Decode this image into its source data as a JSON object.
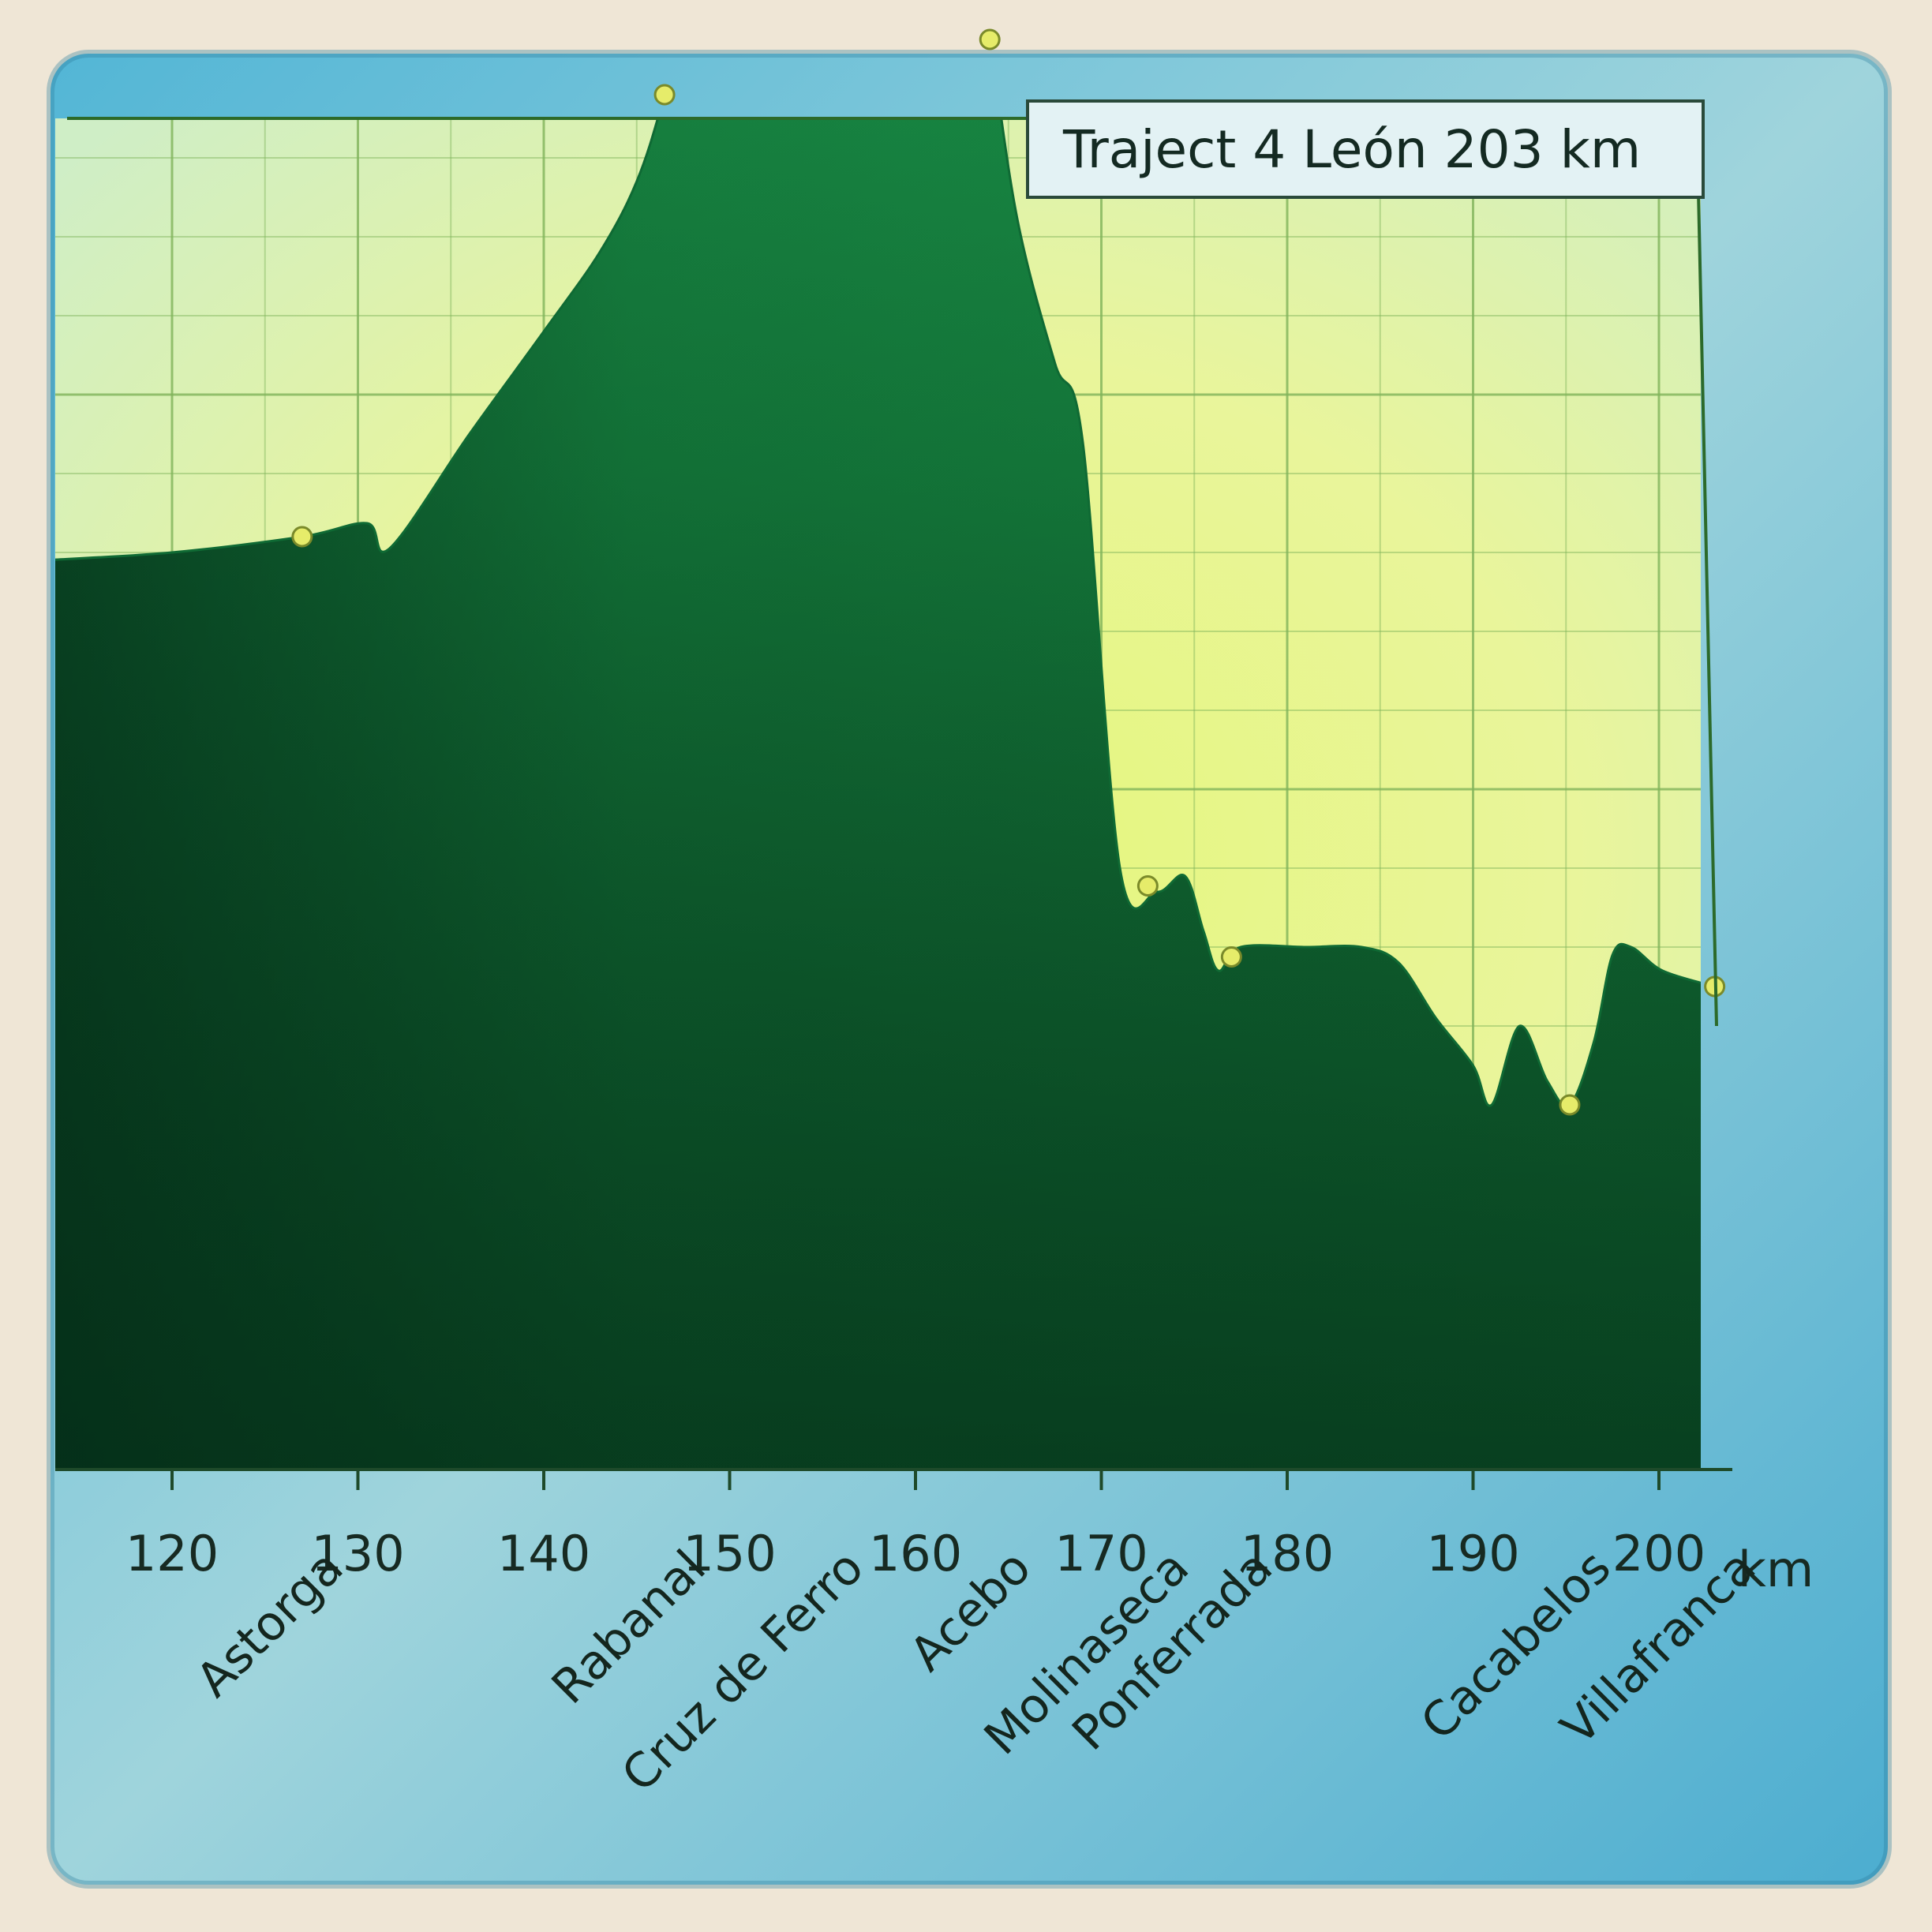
{
  "chart_data": {
    "type": "area",
    "title": "Traject 4 León 203 km",
    "xlabel": "",
    "ylabel": "",
    "x_unit": "km",
    "xlim": [
      113,
      204
    ],
    "xticks": [
      120,
      130,
      140,
      150,
      160,
      170,
      180,
      190,
      200
    ],
    "tick_labels": [
      "120",
      "130",
      "140",
      "150",
      "160",
      "170",
      "180",
      "190",
      "200"
    ],
    "x_unit_label": "km",
    "grid": true,
    "elevation_profile": {
      "x": [
        113,
        120,
        127,
        130.5,
        131.7,
        136,
        140,
        143,
        145,
        146.5,
        148.5,
        151,
        153,
        155,
        156.8,
        158.2,
        159.5,
        160.5,
        162.5,
        164,
        165.5,
        167.5,
        169,
        171,
        173,
        174.5,
        175.5,
        176.3,
        177.5,
        181,
        184,
        186,
        188,
        190,
        191,
        192.5,
        194,
        195.2,
        196.5,
        197.5,
        198.5,
        200.2,
        203
      ],
      "y": [
        2.9,
        3.0,
        3.2,
        3.37,
        3.05,
        4.5,
        5.8,
        6.8,
        7.7,
        8.8,
        10.6,
        12.8,
        14.6,
        16.0,
        15.2,
        16.1,
        16.5,
        14.8,
        11.6,
        9.5,
        7.2,
        5.4,
        4.4,
        -1.0,
        -1.3,
        -1.1,
        -1.8,
        -2.3,
        -2.0,
        -2.0,
        -2.0,
        -2.2,
        -2.9,
        -3.5,
        -4.0,
        -3.0,
        -3.7,
        -4.0,
        -3.2,
        -2.1,
        -2.0,
        -2.3,
        -2.5
      ]
    },
    "places": [
      {
        "name": "Astorga",
        "x": 127
      },
      {
        "name": "Rabanal",
        "x": 146.5
      },
      {
        "name": "Cruz de Ferro",
        "x": 155
      },
      {
        "name": "Acebo",
        "x": 164
      },
      {
        "name": "Molinaseca",
        "x": 172.5
      },
      {
        "name": "Ponferrada",
        "x": 177
      },
      {
        "name": "Cacabelos",
        "x": 195.2
      },
      {
        "name": "Villafranca",
        "x": 203
      }
    ],
    "colors": {
      "fill": "#1fa34e",
      "fill_dark": "#0a4a26",
      "sky_yellow": "#e8f58a",
      "sky_green": "#c7ebc8",
      "grid": "#7fb35a",
      "marker": "#e6ec6a",
      "frame": "#5ab4cf"
    }
  }
}
